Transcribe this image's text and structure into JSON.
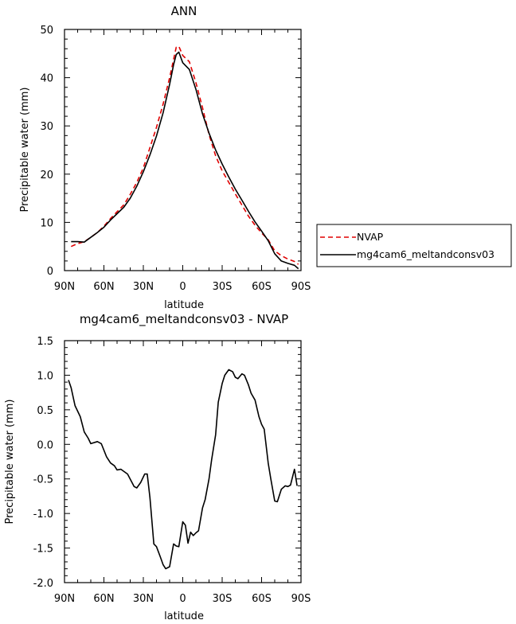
{
  "chart_data": [
    {
      "type": "line",
      "title": "ANN",
      "xlabel": "latitude",
      "ylabel": "Precipitable water (mm)",
      "xlim": [
        90,
        -90
      ],
      "ylim": [
        0,
        50
      ],
      "yticks": [
        "0",
        "10",
        "20",
        "30",
        "40",
        "50"
      ],
      "xticks": [
        "90N",
        "60N",
        "30N",
        "0",
        "30S",
        "60S",
        "90S"
      ],
      "grid": false,
      "legend_position": "right",
      "series": [
        {
          "name": "NVAP",
          "color": "#e00000",
          "dash": "dashed",
          "x": [
            85,
            80,
            75,
            70,
            65,
            60,
            55,
            50,
            45,
            40,
            35,
            30,
            25,
            20,
            15,
            10,
            7,
            5,
            3,
            0,
            -5,
            -10,
            -15,
            -20,
            -25,
            -30,
            -35,
            -40,
            -45,
            -50,
            -55,
            -60,
            -65,
            -70,
            -75,
            -80,
            -85,
            -88
          ],
          "y": [
            5.0,
            5.6,
            6.0,
            6.9,
            7.9,
            9.2,
            10.8,
            12.2,
            13.6,
            15.8,
            18.3,
            21.3,
            25.5,
            29.7,
            34.5,
            40.0,
            43.8,
            46.3,
            46.5,
            44.6,
            43.3,
            39.0,
            33.8,
            28.2,
            23.8,
            20.7,
            18.3,
            15.9,
            13.6,
            11.3,
            9.4,
            7.8,
            6.4,
            4.1,
            3.1,
            2.4,
            1.9,
            1.3
          ]
        },
        {
          "name": "mg4cam6_meltandconsv03",
          "color": "#000000",
          "dash": "solid",
          "x": [
            85,
            80,
            75,
            70,
            65,
            60,
            55,
            50,
            45,
            40,
            35,
            30,
            25,
            20,
            15,
            10,
            7,
            5,
            3,
            0,
            -5,
            -10,
            -15,
            -20,
            -25,
            -30,
            -35,
            -40,
            -45,
            -50,
            -55,
            -60,
            -65,
            -70,
            -75,
            -80,
            -85,
            -88
          ],
          "y": [
            6.0,
            6.0,
            5.9,
            6.9,
            7.9,
            9.0,
            10.5,
            11.8,
            13.1,
            15.0,
            17.5,
            20.5,
            24.0,
            27.9,
            32.7,
            38.6,
            42.7,
            44.8,
            45.3,
            43.1,
            41.7,
            37.6,
            32.5,
            28.5,
            25.0,
            22.1,
            19.4,
            16.9,
            14.6,
            12.3,
            10.1,
            8.2,
            6.2,
            3.5,
            2.0,
            1.5,
            1.1,
            0.4
          ]
        }
      ]
    },
    {
      "type": "line",
      "title": "mg4cam6_meltandconsv03 - NVAP",
      "xlabel": "latitude",
      "ylabel": "Precipitable water (mm)",
      "xlim": [
        90,
        -90
      ],
      "ylim": [
        -2.0,
        1.5
      ],
      "yticks": [
        "-2.0",
        "-1.5",
        "-1.0",
        "-0.5",
        "0.0",
        "0.5",
        "1.0",
        "1.5"
      ],
      "xticks": [
        "90N",
        "60N",
        "30N",
        "0",
        "30S",
        "60S",
        "90S"
      ],
      "grid": false,
      "series": [
        {
          "color": "#000000",
          "dash": "solid",
          "x": [
            87,
            85,
            82,
            78,
            75,
            72,
            70,
            65,
            62,
            58,
            55,
            52,
            50,
            47,
            42,
            37,
            35,
            32,
            29,
            27,
            25,
            22,
            20,
            17,
            15,
            13,
            10,
            7,
            5,
            3,
            0,
            -2,
            -4,
            -6,
            -8,
            -10,
            -12,
            -15,
            -17,
            -20,
            -22,
            -25,
            -27,
            -30,
            -32,
            -35,
            -38,
            -40,
            -42,
            -45,
            -47,
            -50,
            -52,
            -55,
            -58,
            -60,
            -62,
            -65,
            -67,
            -70,
            -72,
            -75,
            -78,
            -80,
            -82,
            -85,
            -87
          ],
          "y": [
            0.93,
            0.82,
            0.56,
            0.4,
            0.18,
            0.09,
            0.01,
            0.04,
            0.01,
            -0.18,
            -0.27,
            -0.31,
            -0.37,
            -0.36,
            -0.43,
            -0.61,
            -0.63,
            -0.55,
            -0.43,
            -0.43,
            -0.77,
            -1.44,
            -1.48,
            -1.63,
            -1.74,
            -1.8,
            -1.77,
            -1.44,
            -1.47,
            -1.48,
            -1.12,
            -1.17,
            -1.43,
            -1.27,
            -1.32,
            -1.28,
            -1.25,
            -0.92,
            -0.8,
            -0.5,
            -0.22,
            0.14,
            0.61,
            0.88,
            1.0,
            1.08,
            1.05,
            0.97,
            0.95,
            1.02,
            1.0,
            0.86,
            0.74,
            0.64,
            0.4,
            0.29,
            0.22,
            -0.27,
            -0.5,
            -0.82,
            -0.83,
            -0.65,
            -0.6,
            -0.61,
            -0.59,
            -0.36,
            -0.6
          ]
        }
      ]
    }
  ],
  "legend": {
    "entries": [
      "NVAP",
      "mg4cam6_meltandconsv03"
    ]
  }
}
